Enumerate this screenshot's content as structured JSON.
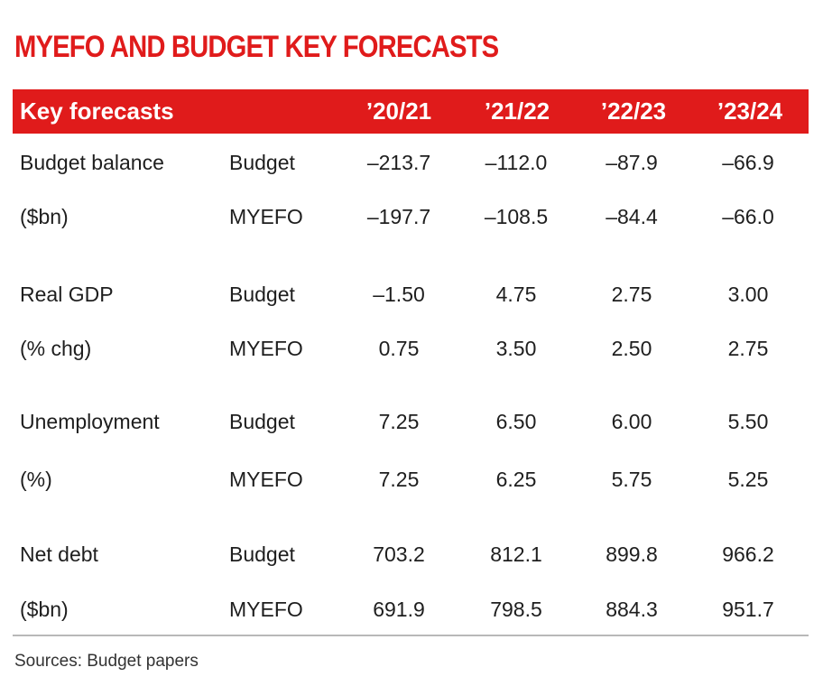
{
  "title": "MYEFO AND BUDGET KEY FORECASTS",
  "header": {
    "label": "Key forecasts",
    "years": [
      "’20/21",
      "’21/22",
      "’22/23",
      "’23/24"
    ]
  },
  "rows": [
    {
      "label": "Budget balance",
      "source": "Budget",
      "values": [
        "–213.7",
        "–112.0",
        "–87.9",
        "–66.9"
      ]
    },
    {
      "label": "($bn)",
      "source": "MYEFO",
      "values": [
        "–197.7",
        "–108.5",
        "–84.4",
        "–66.0"
      ]
    },
    {
      "label": "Real GDP",
      "source": "Budget",
      "values": [
        "–1.50",
        "4.75",
        "2.75",
        "3.00"
      ]
    },
    {
      "label": "(% chg)",
      "source": "MYEFO",
      "values": [
        "0.75",
        "3.50",
        "2.50",
        "2.75"
      ]
    },
    {
      "label": "Unemployment",
      "source": "Budget",
      "values": [
        "7.25",
        "6.50",
        "6.00",
        "5.50"
      ]
    },
    {
      "label": "(%)",
      "source": "MYEFO",
      "values": [
        "7.25",
        "6.25",
        "5.75",
        "5.25"
      ]
    },
    {
      "label": "Net debt",
      "source": "Budget",
      "values": [
        "703.2",
        "812.1",
        "899.8",
        "966.2"
      ]
    },
    {
      "label": "($bn)",
      "source": "MYEFO",
      "values": [
        "691.9",
        "798.5",
        "884.3",
        "951.7"
      ]
    }
  ],
  "footer": {
    "source": "Sources: Budget papers"
  },
  "colors": {
    "accent": "#e01b1b",
    "text": "#1e1e1e",
    "divider": "#b8b8b8"
  },
  "chart_data": {
    "type": "table",
    "title": "MYEFO AND BUDGET KEY FORECASTS",
    "columns": [
      "Key forecasts",
      "",
      "’20/21",
      "’21/22",
      "’22/23",
      "’23/24"
    ],
    "series": [
      {
        "name": "Budget balance ($bn) — Budget",
        "values": [
          -213.7,
          -112.0,
          -87.9,
          -66.9
        ]
      },
      {
        "name": "Budget balance ($bn) — MYEFO",
        "values": [
          -197.7,
          -108.5,
          -84.4,
          -66.0
        ]
      },
      {
        "name": "Real GDP (% chg) — Budget",
        "values": [
          -1.5,
          4.75,
          2.75,
          3.0
        ]
      },
      {
        "name": "Real GDP (% chg) — MYEFO",
        "values": [
          0.75,
          3.5,
          2.5,
          2.75
        ]
      },
      {
        "name": "Unemployment (%) — Budget",
        "values": [
          7.25,
          6.5,
          6.0,
          5.5
        ]
      },
      {
        "name": "Unemployment (%) — MYEFO",
        "values": [
          7.25,
          6.25,
          5.75,
          5.25
        ]
      },
      {
        "name": "Net debt ($bn) — Budget",
        "values": [
          703.2,
          812.1,
          899.8,
          966.2
        ]
      },
      {
        "name": "Net debt ($bn) — MYEFO",
        "values": [
          691.9,
          798.5,
          884.3,
          951.7
        ]
      }
    ],
    "categories": [
      "’20/21",
      "’21/22",
      "’22/23",
      "’23/24"
    ]
  }
}
